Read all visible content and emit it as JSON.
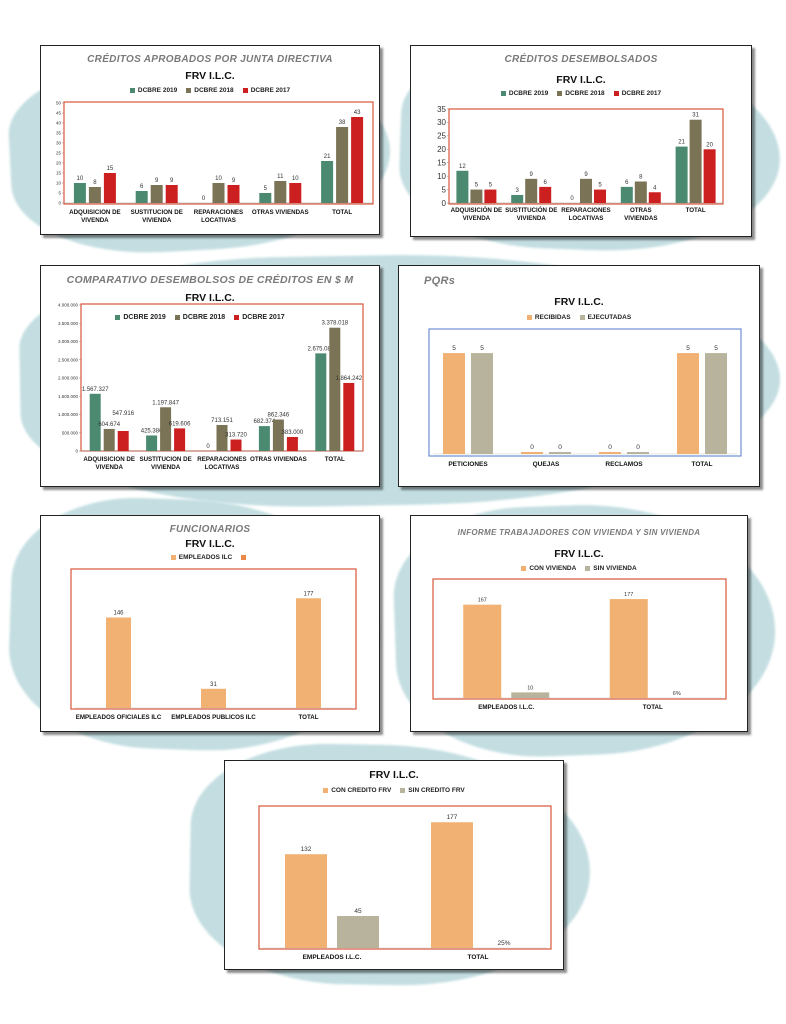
{
  "colors": {
    "dcbre2019": "#4b8a70",
    "dcbre2018": "#7b7355",
    "dcbre2017": "#cc2020",
    "orange": "#f1b172",
    "tan": "#b8b39c",
    "frame_red": "#d9563b",
    "frame_blue": "#6d8fd2"
  },
  "chart_data": [
    {
      "type": "bar",
      "title": "CRÉDITOS APROBADOS POR JUNTA DIRECTIVA",
      "subtitle": "FRV I.L.C.",
      "legend": [
        {
          "name": "DCBRE 2019",
          "color": "#4b8a70"
        },
        {
          "name": "DCBRE 2018",
          "color": "#7b7355"
        },
        {
          "name": "DCBRE 2017",
          "color": "#cc2020"
        }
      ],
      "categories": [
        [
          "ADQUISICION DE",
          "VIVENDA"
        ],
        [
          "SUSTITUCION DE",
          "VIVIENDA"
        ],
        [
          "REPARACIONES",
          "LOCATIVAS"
        ],
        [
          "OTRAS VIVIENDAS"
        ],
        [
          "TOTAL"
        ]
      ],
      "series": [
        {
          "name": "DCBRE 2019",
          "color": "#4b8a70",
          "values": [
            10,
            6,
            0,
            5,
            21
          ]
        },
        {
          "name": "DCBRE 2018",
          "color": "#7b7355",
          "values": [
            8,
            9,
            10,
            11,
            38
          ]
        },
        {
          "name": "DCBRE 2017",
          "color": "#cc2020",
          "values": [
            15,
            9,
            9,
            10,
            43
          ]
        }
      ],
      "ylim": [
        0,
        50
      ],
      "yticks": [
        "0",
        "5",
        "10",
        "15",
        "20",
        "25",
        "30",
        "35",
        "40",
        "45",
        "50"
      ],
      "grid": false,
      "legend_position": "top"
    },
    {
      "type": "bar",
      "title": "CRÉDITOS DESEMBOLSADOS",
      "subtitle": "FRV I.L.C.",
      "legend": [
        {
          "name": "DCBRE 2019",
          "color": "#4b8a70"
        },
        {
          "name": "DCBRE 2018",
          "color": "#7b7355"
        },
        {
          "name": "DCBRE 2017",
          "color": "#cc2020"
        }
      ],
      "categories": [
        [
          "ADQUISICIÓN DE",
          "VIVENDA"
        ],
        [
          "SUSTITUCIÓN DE",
          "VIVIENDA"
        ],
        [
          "REPARACIONES",
          "LOCATIVAS"
        ],
        [
          "OTRAS",
          "VIVIENDAS"
        ],
        [
          "TOTAL"
        ]
      ],
      "series": [
        {
          "name": "DCBRE 2019",
          "color": "#4b8a70",
          "values": [
            12,
            3,
            0,
            6,
            21
          ]
        },
        {
          "name": "DCBRE 2018",
          "color": "#7b7355",
          "values": [
            5,
            9,
            9,
            8,
            31
          ]
        },
        {
          "name": "DCBRE 2017",
          "color": "#cc2020",
          "values": [
            5,
            6,
            5,
            4,
            20
          ]
        }
      ],
      "ylim": [
        0,
        35
      ],
      "yticks": [
        "0",
        "5",
        "10",
        "15",
        "20",
        "25",
        "30",
        "35"
      ],
      "grid": false,
      "legend_position": "top"
    },
    {
      "type": "bar",
      "title": "COMPARATIVO DESEMBOLSOS DE CRÉDITOS EN $ M",
      "subtitle": "FRV I.L.C.",
      "legend": [
        {
          "name": "DCBRE 2019",
          "color": "#4b8a70"
        },
        {
          "name": "DCBRE 2018",
          "color": "#7b7355"
        },
        {
          "name": "DCBRE 2017",
          "color": "#cc2020"
        }
      ],
      "categories": [
        [
          "ADQUISICION DE",
          "VIVENDA"
        ],
        [
          "SUSTITUCION DE",
          "VIVIENDA"
        ],
        [
          "REPARACIONES",
          "LOCATIVAS"
        ],
        [
          "OTRAS VIVIENDAS"
        ],
        [
          "TOTAL"
        ]
      ],
      "series": [
        {
          "name": "DCBRE 2019",
          "color": "#4b8a70",
          "values": [
            1567327,
            425386,
            0,
            682374,
            2675087
          ],
          "labels": [
            "1.567.327",
            "425.386",
            "0",
            "682.374",
            "2.675.087"
          ]
        },
        {
          "name": "DCBRE 2018",
          "color": "#7b7355",
          "values": [
            604674,
            1197847,
            713151,
            862346,
            3378018
          ],
          "labels": [
            "604.674",
            "1.197.847",
            "713.151",
            "862.346",
            "3.378.018"
          ]
        },
        {
          "name": "DCBRE 2017",
          "color": "#cc2020",
          "values": [
            547916,
            619606,
            313720,
            383000,
            1864242
          ],
          "labels": [
            "547.916",
            "619.606",
            "313.720",
            "383.000",
            "1.864.242"
          ]
        }
      ],
      "ylim": [
        0,
        4000000
      ],
      "yticks": [
        "0",
        "500.000",
        "1.000.000",
        "1.500.000",
        "2.000.000",
        "2.500.000",
        "3.000.000",
        "3.500.000",
        "4.000.000"
      ],
      "grid": false,
      "legend_position": "inside-top"
    },
    {
      "type": "bar",
      "title": "PQRs",
      "subtitle": "FRV I.L.C.",
      "legend": [
        {
          "name": "RECIBIDAS",
          "color": "#f1b172"
        },
        {
          "name": "EJECUTADAS",
          "color": "#b8b39c"
        }
      ],
      "categories": [
        [
          "PETICIONES"
        ],
        [
          "QUEJAS"
        ],
        [
          "RECLAMOS"
        ],
        [
          "TOTAL"
        ]
      ],
      "series": [
        {
          "name": "RECIBIDAS",
          "color": "#f1b172",
          "values": [
            5,
            0,
            0,
            5
          ]
        },
        {
          "name": "EJECUTADAS",
          "color": "#b8b39c",
          "values": [
            5,
            0,
            0,
            5
          ]
        }
      ],
      "ylim": [
        0,
        5.5
      ],
      "grid": false,
      "legend_position": "top"
    },
    {
      "type": "bar",
      "title": "FUNCIONARIOS",
      "subtitle": "FRV I.L.C.",
      "legend": [
        {
          "name": "EMPLEADOS ILC",
          "color": "#f1b172"
        },
        {
          "name": "",
          "color": "#e8894a"
        }
      ],
      "categories": [
        [
          "EMPLEADOS OFICIALES ILC"
        ],
        [
          "EMPLEADOS PUBLICOS ILC"
        ],
        [
          "TOTAL"
        ]
      ],
      "series": [
        {
          "name": "EMPLEADOS ILC",
          "color": "#f1b172",
          "values": [
            146,
            31,
            177
          ]
        }
      ],
      "ylim": [
        0,
        200
      ],
      "grid": false,
      "legend_position": "top"
    },
    {
      "type": "bar",
      "title": "INFORME  TRABAJADORES CON VIVIENDA Y SIN VIVIENDA",
      "subtitle": "FRV I.L.C.",
      "legend": [
        {
          "name": "CON VIVIENDA",
          "color": "#f1b172"
        },
        {
          "name": "SIN VIVIENDA",
          "color": "#b8b39c"
        }
      ],
      "categories": [
        [
          "EMPLEADOS I.L.C."
        ],
        [
          "TOTAL"
        ]
      ],
      "series": [
        {
          "name": "CON VIVIENDA",
          "color": "#f1b172",
          "values": [
            167,
            177
          ],
          "labels": [
            "167",
            "177"
          ]
        },
        {
          "name": "SIN VIVIENDA",
          "color": "#b8b39c",
          "values": [
            10,
            0
          ],
          "labels": [
            "10",
            "6%"
          ]
        }
      ],
      "ylim": [
        0,
        195
      ],
      "grid": false,
      "legend_position": "top"
    },
    {
      "type": "bar",
      "title": "",
      "subtitle": "FRV I.L.C.",
      "legend": [
        {
          "name": "CON CREDITO FRV",
          "color": "#f1b172"
        },
        {
          "name": "SIN CREDITO FRV",
          "color": "#b8b39c"
        }
      ],
      "categories": [
        [
          "EMPLEADOS I.L.C."
        ],
        [
          "TOTAL"
        ]
      ],
      "series": [
        {
          "name": "CON CREDITO FRV",
          "color": "#f1b172",
          "values": [
            132,
            177
          ],
          "labels": [
            "132",
            "177"
          ]
        },
        {
          "name": "SIN CREDITO FRV",
          "color": "#b8b39c",
          "values": [
            45,
            0
          ],
          "labels": [
            "45",
            "25%"
          ]
        }
      ],
      "ylim": [
        0,
        190
      ],
      "grid": false,
      "legend_position": "top"
    }
  ]
}
